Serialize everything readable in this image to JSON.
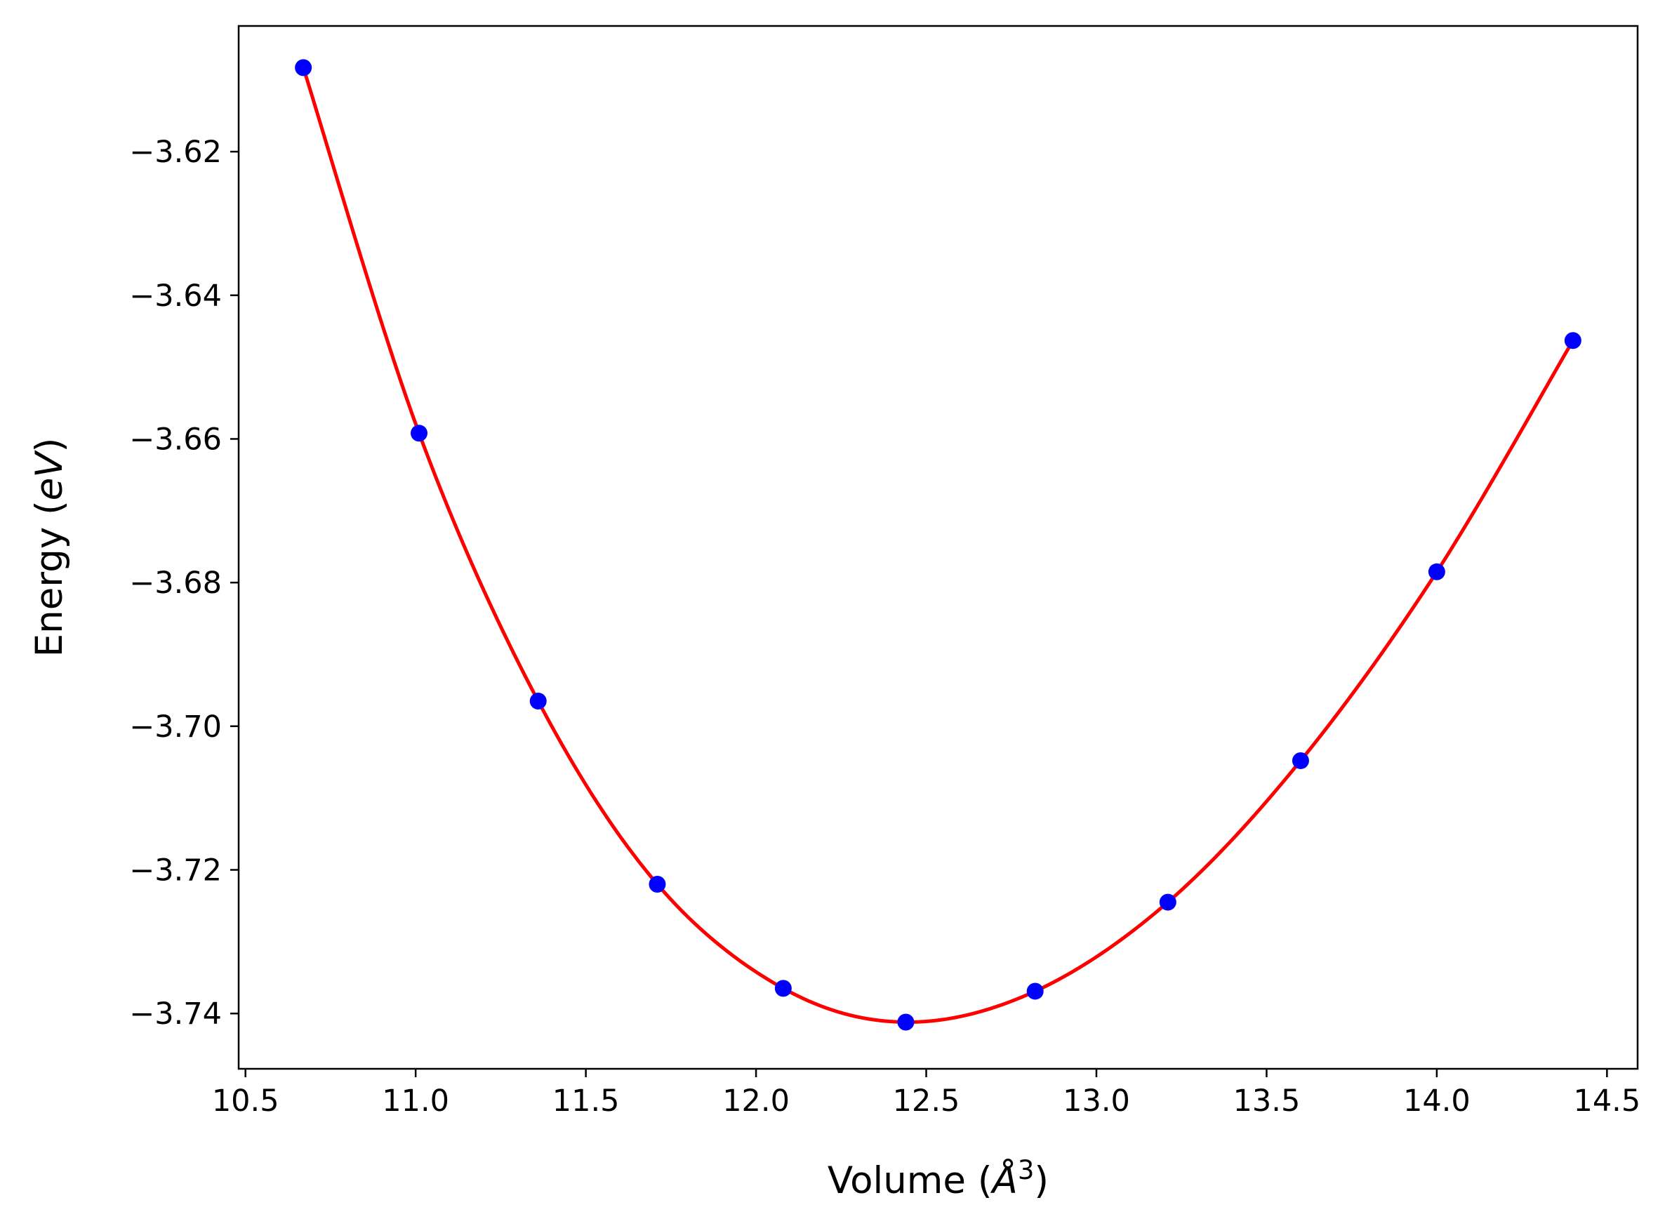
{
  "chart_data": {
    "type": "line",
    "title": "",
    "xlabel": {
      "prefix": "Volume (",
      "unit": "Å",
      "exp": "3",
      "suffix": ")"
    },
    "ylabel": {
      "prefix": "Energy (",
      "unit": "eV",
      "suffix": ")"
    },
    "xlim": [
      10.48,
      14.59
    ],
    "ylim": [
      -3.7477,
      -3.6025
    ],
    "x_ticks": [
      10.5,
      11.0,
      11.5,
      12.0,
      12.5,
      13.0,
      13.5,
      14.0,
      14.5
    ],
    "x_tick_labels": [
      "10.5",
      "11.0",
      "11.5",
      "12.0",
      "12.5",
      "13.0",
      "13.5",
      "14.0",
      "14.5"
    ],
    "y_ticks": [
      -3.62,
      -3.64,
      -3.66,
      -3.68,
      -3.7,
      -3.72,
      -3.74
    ],
    "y_tick_labels": [
      "−3.62",
      "−3.64",
      "−3.66",
      "−3.68",
      "−3.70",
      "−3.72",
      "−3.74"
    ],
    "grid": false,
    "legend": "none",
    "series": [
      {
        "style": "markers",
        "color": "#0000ff",
        "x": [
          10.67,
          11.01,
          11.36,
          11.71,
          12.08,
          12.44,
          12.82,
          13.21,
          13.6,
          14.0,
          14.4
        ],
        "y": [
          -3.6083,
          -3.6592,
          -3.6965,
          -3.722,
          -3.7365,
          -3.7412,
          -3.7369,
          -3.7245,
          -3.7048,
          -3.6785,
          -3.6463
        ]
      },
      {
        "style": "line",
        "color": "#ff0000",
        "fit": "curve",
        "x_range": [
          10.67,
          14.4
        ]
      }
    ]
  }
}
